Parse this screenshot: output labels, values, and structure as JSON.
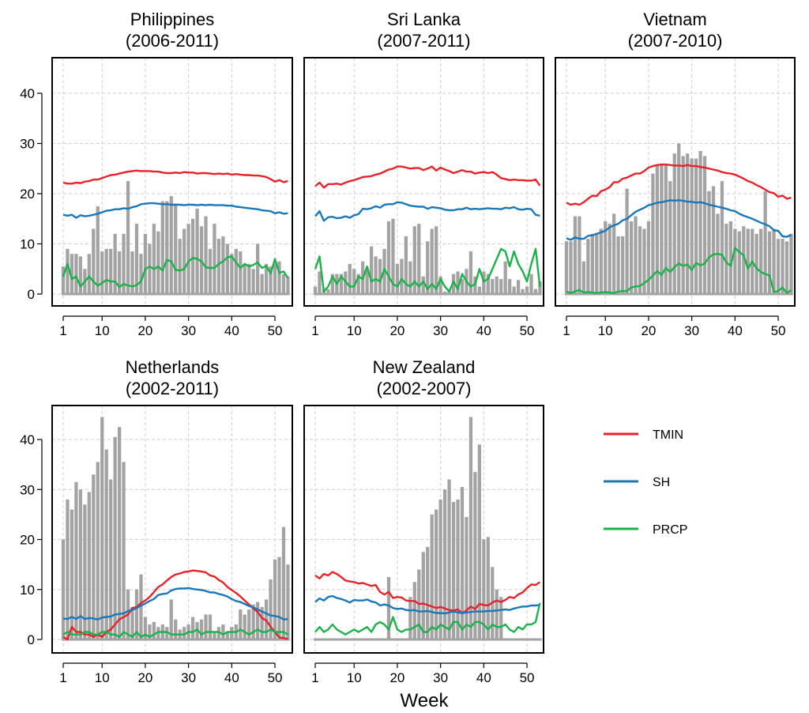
{
  "colors": {
    "TMIN": "#e8222a",
    "SH": "#1a78b8",
    "PRCP": "#1db14b",
    "bars": "#a3a3a3"
  },
  "chart_data": {
    "type": "bar+line",
    "xlabel": "Week",
    "weeks": [
      1,
      2,
      3,
      4,
      5,
      6,
      7,
      8,
      9,
      10,
      11,
      12,
      13,
      14,
      15,
      16,
      17,
      18,
      19,
      20,
      21,
      22,
      23,
      24,
      25,
      26,
      27,
      28,
      29,
      30,
      31,
      32,
      33,
      34,
      35,
      36,
      37,
      38,
      39,
      40,
      41,
      42,
      43,
      44,
      45,
      46,
      47,
      48,
      49,
      50,
      51,
      52,
      53
    ],
    "x_ticks": [
      1,
      10,
      20,
      30,
      40,
      50
    ],
    "y_ticks": [
      0,
      10,
      20,
      30,
      40
    ],
    "ylim": [
      -1,
      46
    ],
    "legend": [
      {
        "name": "TMIN",
        "color": "#e8222a"
      },
      {
        "name": "SH",
        "color": "#1a78b8"
      },
      {
        "name": "PRCP",
        "color": "#1db14b"
      }
    ],
    "panels": [
      {
        "title": "Philippines",
        "period": "(2006-2011)",
        "bars": [
          5.5,
          9,
          8,
          8,
          7.5,
          5,
          8,
          13,
          17.5,
          8.5,
          9,
          9,
          12,
          8.5,
          12,
          22.5,
          8.5,
          14,
          8,
          12,
          10,
          14,
          12.5,
          18.5,
          18.5,
          19.5,
          18,
          11,
          13,
          14,
          15,
          17,
          13.5,
          15.5,
          9,
          14,
          11,
          11.5,
          10,
          8,
          9,
          8.5,
          6,
          6,
          5,
          10,
          4,
          6,
          5.5,
          6,
          6.5,
          4,
          3.5
        ],
        "TMIN": [
          22.2,
          22,
          22,
          22.2,
          22.1,
          22.4,
          22.5,
          22.8,
          22.8,
          23.1,
          23.4,
          23.7,
          23.8,
          24,
          24.2,
          24.4,
          24.5,
          24.6,
          24.5,
          24.5,
          24.5,
          24.4,
          24.4,
          24.2,
          24.1,
          24.1,
          24.2,
          24.1,
          24.3,
          24.2,
          24.2,
          24,
          24.1,
          24.1,
          24,
          23.9,
          24,
          23.9,
          24,
          23.8,
          23.9,
          23.8,
          23.7,
          23.7,
          23.6,
          23.6,
          23.5,
          23.3,
          22.9,
          22.4,
          22.7,
          22.3,
          22.5
        ],
        "SH": [
          15.8,
          15.6,
          15.8,
          15.2,
          15.7,
          15.5,
          15.6,
          15.8,
          16,
          16.3,
          16.6,
          16.7,
          16.9,
          16.9,
          17.1,
          17,
          17.3,
          17.5,
          17.9,
          18,
          18.1,
          18.1,
          18,
          17.9,
          17.9,
          17.8,
          17.8,
          17.8,
          17.7,
          17.8,
          17.8,
          17.7,
          17.8,
          17.7,
          17.8,
          17.7,
          17.7,
          17.7,
          17.6,
          17.6,
          17.4,
          17.3,
          17.2,
          17.1,
          17,
          16.9,
          16.7,
          16.6,
          16.5,
          16.1,
          16.3,
          16,
          16.1
        ],
        "PRCP": [
          3.5,
          6,
          3,
          3.5,
          1.5,
          2.5,
          3.5,
          2.5,
          1.7,
          2.2,
          2.8,
          2.5,
          2.5,
          1.4,
          2,
          1.7,
          1.5,
          1.8,
          2.5,
          5,
          5.5,
          5,
          5.5,
          4.7,
          6.8,
          6.5,
          4.8,
          4.7,
          5,
          6.5,
          7.2,
          7,
          6.5,
          5.3,
          5.2,
          5.2,
          6,
          6.5,
          7.3,
          7.5,
          6.3,
          5.2,
          6,
          5.5,
          5.8,
          6.3,
          5.2,
          5.6,
          4.1,
          7,
          4.2,
          4.5,
          3.2
        ]
      },
      {
        "title": "Sri Lanka",
        "period": "(2007-2011)",
        "bars": [
          1.5,
          4.5,
          1,
          1,
          4,
          4,
          4,
          4.5,
          6,
          5,
          4,
          6.5,
          5,
          9.5,
          7.5,
          7,
          9,
          14.5,
          15,
          6,
          7,
          11.5,
          6.5,
          13.5,
          14,
          3.5,
          10.5,
          13,
          13.5,
          3.5,
          0.5,
          0.8,
          4,
          4.5,
          3,
          5,
          8.5,
          3.5,
          1.5,
          4.5,
          4,
          3,
          3.5,
          3,
          6.5,
          3,
          1.5,
          2.8,
          1,
          1.5,
          4,
          1,
          2.5
        ],
        "TMIN": [
          21.5,
          22.2,
          21.2,
          21.9,
          21.9,
          22,
          21.8,
          22.2,
          22.5,
          22.7,
          23,
          23.3,
          23.4,
          23.5,
          23.8,
          24,
          24.4,
          24.8,
          25,
          25.4,
          25.4,
          25.2,
          25,
          25.1,
          25.1,
          24.7,
          25,
          25.4,
          24.6,
          25.2,
          24.8,
          24.5,
          24.1,
          24.4,
          24.7,
          24.4,
          24.4,
          24,
          24.2,
          24.3,
          24.1,
          24.3,
          23.8,
          23.1,
          22.9,
          22.7,
          22.8,
          22.7,
          22.7,
          22.6,
          22.6,
          22.8,
          21.6
        ],
        "SH": [
          15.5,
          16.5,
          14.6,
          15.3,
          15.4,
          15.1,
          15.2,
          15.5,
          15.2,
          15.7,
          15.9,
          17,
          16.9,
          17.1,
          17.5,
          17.2,
          17.8,
          17.9,
          17.9,
          18.3,
          18.2,
          17.9,
          17.6,
          17.5,
          17.4,
          17.4,
          17,
          17.3,
          17.2,
          17.1,
          16.8,
          16.7,
          16.7,
          16.9,
          16.9,
          17.2,
          16.9,
          17,
          16.9,
          17,
          17.1,
          17,
          17,
          16.9,
          17.2,
          17.1,
          17.3,
          16.9,
          16.8,
          17,
          16.9,
          15.8,
          15.6
        ],
        "PRCP": [
          5,
          7.5,
          0.5,
          1.5,
          3.5,
          2,
          3.5,
          2.5,
          1.5,
          1.5,
          3.5,
          3,
          5.5,
          2.5,
          3,
          2.5,
          5,
          3.5,
          2,
          1.5,
          3,
          2,
          1.5,
          2.5,
          1.5,
          2.5,
          1,
          2,
          1,
          3,
          1.5,
          0.5,
          2.5,
          1,
          4,
          2.5,
          1.5,
          2,
          5,
          2.5,
          3,
          5,
          7,
          9,
          8.5,
          5.5,
          8.5,
          6,
          4.5,
          2.5,
          6,
          9,
          1.5
        ]
      },
      {
        "title": "Vietnam",
        "period": "(2007-2010)",
        "bars": [
          10.5,
          10.5,
          15.5,
          15.5,
          6.5,
          11,
          12,
          12,
          13,
          14.5,
          14,
          16,
          11.5,
          11.5,
          21,
          14.5,
          15.5,
          13.5,
          13,
          14.5,
          24,
          25.5,
          26,
          26,
          22.5,
          28,
          30,
          27.5,
          28,
          27,
          27,
          28.5,
          27.5,
          20.5,
          21.5,
          16,
          22.5,
          14,
          14.5,
          13,
          12.5,
          13.5,
          13,
          13,
          12,
          13,
          20.5,
          12.5,
          13,
          11,
          11,
          10.5,
          12
        ],
        "TMIN": [
          18.2,
          17.8,
          18,
          17.8,
          18.3,
          19,
          19.6,
          19.5,
          20.5,
          20.8,
          21.3,
          22.3,
          22.3,
          23,
          23.2,
          23.6,
          24,
          24,
          24.5,
          25.2,
          25.5,
          25.7,
          25.8,
          25.8,
          25.7,
          25.6,
          25.6,
          25.5,
          25.7,
          25.5,
          25.5,
          25.3,
          25.2,
          25,
          24.8,
          24.6,
          24.3,
          24.1,
          24,
          23.8,
          23.4,
          23,
          22.5,
          22.2,
          21.7,
          21.3,
          20.8,
          20.3,
          20.1,
          19.4,
          19.6,
          19,
          19.2
        ],
        "SH": [
          11.1,
          10.8,
          11.3,
          11,
          11,
          11.6,
          11.7,
          12,
          12.3,
          12.6,
          13.3,
          13.7,
          14,
          14.7,
          15,
          15.7,
          16.4,
          16.8,
          17.2,
          17.7,
          17.9,
          18.2,
          18.3,
          18.5,
          18.7,
          18.6,
          18.7,
          18.6,
          18.4,
          18.4,
          18.2,
          18.3,
          18.1,
          17.8,
          17.6,
          17.4,
          17.2,
          17,
          16.7,
          16.5,
          16,
          15.6,
          15.3,
          15,
          14.6,
          14.2,
          13.9,
          13.5,
          12.7,
          12.6,
          11.5,
          11.4,
          11.8
        ],
        "PRCP": [
          0.5,
          0.2,
          0.5,
          0.8,
          0.3,
          0.4,
          0.3,
          0.2,
          0.3,
          0.4,
          0.3,
          0.2,
          0.5,
          0.6,
          0.6,
          1.3,
          1.5,
          1.6,
          2.2,
          2.8,
          3.7,
          4.6,
          3.8,
          5.2,
          4.4,
          5.4,
          6.1,
          5.6,
          5.9,
          4.8,
          6.2,
          5.7,
          6.1,
          7.3,
          7.9,
          8,
          7.8,
          6.3,
          5.6,
          9.2,
          8.4,
          7.7,
          5.1,
          6.5,
          5.1,
          4.4,
          4,
          3.7,
          0.4,
          0.6,
          1.3,
          0.2,
          0.8
        ]
      },
      {
        "title": "Netherlands",
        "period": "(2002-2011)",
        "bars": [
          20,
          28,
          26,
          31.5,
          30,
          27,
          29.5,
          33,
          35.5,
          44.5,
          38,
          32,
          40.5,
          42.5,
          35.5,
          10,
          6.5,
          10,
          13,
          4.5,
          3,
          3.5,
          2.5,
          3,
          2.5,
          8,
          4,
          2,
          2.5,
          3,
          4.5,
          3.5,
          4,
          5,
          5,
          1.5,
          2.5,
          3,
          1.5,
          2.5,
          3,
          6,
          5,
          6,
          7,
          7.5,
          6.5,
          8,
          12,
          16,
          16.5,
          22.5,
          15
        ],
        "TMIN": [
          0.5,
          0,
          2.5,
          1.5,
          1.5,
          1,
          1,
          0.5,
          1,
          0.5,
          1.5,
          2,
          3,
          4,
          4.5,
          5,
          6.3,
          6.5,
          7.3,
          7.8,
          8.5,
          9.5,
          10.5,
          11,
          11.8,
          12.5,
          13,
          13.2,
          13.5,
          13.6,
          13.8,
          13.7,
          13.6,
          13.4,
          12.8,
          12.6,
          11.9,
          11.4,
          10.5,
          9.9,
          9.3,
          8.6,
          7.8,
          7,
          6.2,
          5.5,
          4.3,
          3.8,
          2.5,
          1.5,
          0.4,
          0.3,
          0.1
        ],
        "SH": [
          4.2,
          4.1,
          4.5,
          4.1,
          4.7,
          4.1,
          4.3,
          4.2,
          4,
          4.4,
          4.5,
          4.6,
          5,
          5.1,
          5.2,
          5.7,
          5.9,
          6.3,
          6.8,
          7.2,
          7.7,
          8.1,
          8.9,
          9.1,
          9.2,
          9.8,
          10.1,
          10.2,
          10.2,
          10.3,
          10.1,
          10,
          9.9,
          9.7,
          9.4,
          9.4,
          9.1,
          8.9,
          8.6,
          8.1,
          7.7,
          7.5,
          7.1,
          6.7,
          6.4,
          6,
          5.6,
          5.2,
          4.8,
          4.7,
          4.5,
          4,
          4.1
        ],
        "PRCP": [
          1,
          1.5,
          1,
          1,
          1,
          1.5,
          1.5,
          1,
          1,
          1.5,
          1.5,
          1,
          1,
          0.5,
          1.5,
          1,
          0.5,
          1.5,
          0.5,
          1,
          0.5,
          1,
          1.5,
          1.5,
          1.5,
          1,
          1,
          1,
          1,
          1.5,
          1.5,
          2,
          1,
          1.5,
          1.5,
          1.5,
          1.5,
          1,
          1.5,
          1.5,
          1.5,
          2,
          1.5,
          1,
          1.5,
          2,
          1.5,
          1.5,
          2,
          1.5,
          1.5,
          1.5,
          1
        ]
      },
      {
        "title": "New Zealand",
        "period": "(2002-2007)",
        "bars": [
          0,
          0,
          0,
          0,
          0,
          0,
          0,
          0,
          0,
          0,
          0,
          0,
          0,
          0,
          0,
          0,
          0,
          12.5,
          0,
          0,
          0,
          0,
          8.5,
          11.5,
          14,
          17.5,
          18.5,
          25,
          26,
          28,
          30,
          32,
          27.5,
          28,
          30.5,
          24.5,
          44.5,
          33.5,
          39,
          20,
          20.5,
          14.5,
          10,
          8.5,
          0,
          0,
          0,
          0,
          0,
          0,
          0,
          0,
          0
        ],
        "TMIN": [
          12.8,
          12.2,
          13.1,
          12.8,
          13.5,
          13.1,
          12.5,
          11.8,
          11.6,
          11.5,
          11.2,
          11.3,
          11,
          10.7,
          10.9,
          9.5,
          9,
          9.5,
          8.3,
          8.5,
          8.4,
          7.8,
          7.7,
          7.7,
          7.1,
          7.2,
          6.9,
          6.6,
          6.3,
          6.5,
          6.2,
          5.9,
          5.8,
          6,
          5.3,
          5.8,
          6.6,
          6.1,
          7.1,
          6.9,
          6.8,
          7.4,
          7.8,
          7.5,
          7.9,
          8.5,
          8.3,
          9,
          9.4,
          10.3,
          11,
          10.9,
          11.5
        ],
        "SH": [
          7.5,
          8.2,
          7.8,
          8.5,
          8.7,
          8.3,
          8.1,
          7.8,
          7.4,
          7.9,
          7.8,
          7.8,
          8,
          7.6,
          7.4,
          6.8,
          7,
          6.8,
          6.3,
          6.1,
          6.2,
          5.9,
          5.8,
          5.9,
          5.6,
          5.6,
          5.7,
          5.5,
          5.3,
          5.3,
          5.2,
          5.4,
          5.6,
          5.4,
          5.3,
          5.4,
          5.5,
          5.6,
          5.6,
          5.6,
          5.7,
          5.7,
          5.8,
          5.9,
          6,
          5.9,
          6.2,
          6.4,
          6.6,
          6.6,
          6.8,
          6.8,
          6.9
        ],
        "PRCP": [
          1.5,
          2.5,
          1.5,
          2,
          3,
          2,
          1.5,
          1,
          1.5,
          2,
          1.5,
          2,
          2.5,
          1.5,
          3,
          3.5,
          3,
          2,
          4.5,
          2,
          1.5,
          2,
          2,
          2.5,
          3,
          1.5,
          1.5,
          2.5,
          2,
          3,
          2.5,
          2,
          3.5,
          3.5,
          2,
          3,
          2.5,
          3.5,
          3.5,
          3,
          2,
          3,
          2.5,
          2.5,
          3,
          2,
          1.5,
          2.5,
          2,
          3,
          3,
          3.5,
          7.3
        ]
      }
    ]
  }
}
